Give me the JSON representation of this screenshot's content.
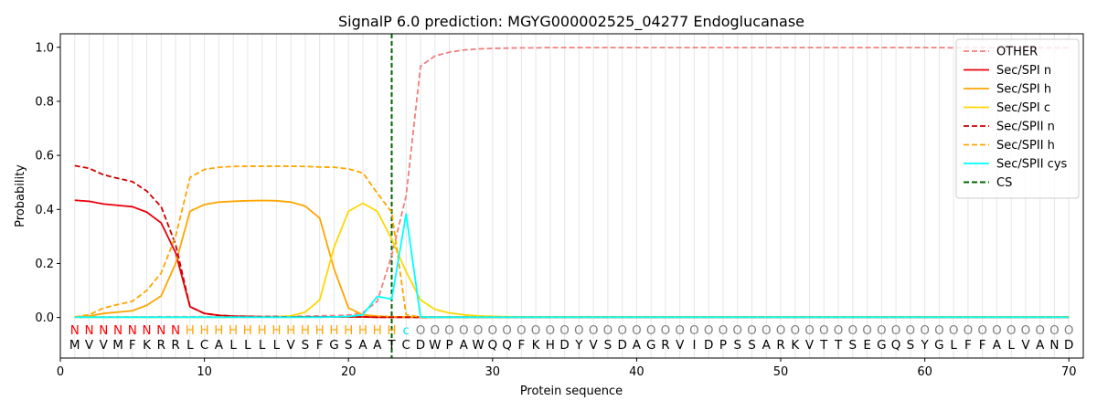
{
  "chart_data": {
    "type": "line",
    "title": "SignalP 6.0 prediction: MGYG000002525_04277 Endoglucanase",
    "xlabel": "Protein sequence",
    "ylabel": "Probability",
    "xlim": [
      0,
      71
    ],
    "ylim": [
      -0.15,
      1.05
    ],
    "xticks": [
      0,
      10,
      20,
      30,
      40,
      50,
      60,
      70
    ],
    "yticks": [
      0.0,
      0.2,
      0.4,
      0.6,
      0.8,
      1.0
    ],
    "ytick_labels": [
      "0.0",
      "0.2",
      "0.4",
      "0.6",
      "0.8",
      "1.0"
    ],
    "vertical_grid": "every position",
    "legend_position": "top-right",
    "sequence": "MVVMFKRRLCALLLLVSFGSAATCDWPAWQQFKHDYVSDAGRVIDPSSARKVTTSEGQSYGLFFALVAND",
    "labels": "NNNNNNNNHHHHHHHHHHHHHHHCOOOOOOOOOOOOOOOOOOOOOOOOOOOOOOOOOOOOOOOOOOOOOO",
    "label_colors": {
      "N": "#ff0000",
      "H": "#ffa500",
      "C": "#00e5ee",
      "O": "#808080"
    },
    "cleavage_site": 23,
    "cs_label": "CS",
    "series": [
      {
        "name": "OTHER",
        "color": "#f08080",
        "dash": true,
        "values": [
          0.002,
          0.002,
          0.002,
          0.002,
          0.002,
          0.002,
          0.003,
          0.003,
          0.003,
          0.003,
          0.003,
          0.003,
          0.003,
          0.003,
          0.004,
          0.004,
          0.005,
          0.006,
          0.007,
          0.009,
          0.018,
          0.06,
          0.23,
          0.45,
          0.93,
          0.968,
          0.982,
          0.99,
          0.994,
          0.996,
          0.997,
          0.998,
          0.998,
          0.999,
          0.999,
          0.999,
          0.999,
          0.999,
          0.999,
          0.999,
          0.999,
          0.999,
          0.999,
          0.999,
          0.999,
          0.999,
          0.999,
          0.999,
          0.999,
          0.999,
          0.999,
          0.999,
          0.999,
          0.999,
          0.999,
          0.999,
          0.999,
          0.999,
          0.999,
          0.999,
          0.999,
          0.998,
          0.998,
          0.998,
          0.998,
          0.998,
          0.998,
          0.998,
          0.998,
          0.998
        ]
      },
      {
        "name": "Sec/SPI n",
        "color": "#e8000b",
        "dash": false,
        "values": [
          0.434,
          0.43,
          0.42,
          0.415,
          0.41,
          0.39,
          0.35,
          0.24,
          0.04,
          0.015,
          0.008,
          0.005,
          0.004,
          0.003,
          0.003,
          0.002,
          0.002,
          0.002,
          0.002,
          0.002,
          0.002,
          0.001,
          0.001,
          0.001,
          0.001,
          0.001,
          0.001,
          0.001,
          0.001,
          0.001,
          0.001,
          0.001,
          0.001,
          0.001,
          0.001,
          0.001,
          0.001,
          0.001,
          0.001,
          0.001,
          0.001,
          0.001,
          0.001,
          0.001,
          0.001,
          0.001,
          0.001,
          0.001,
          0.001,
          0.001,
          0.001,
          0.001,
          0.001,
          0.001,
          0.001,
          0.001,
          0.001,
          0.001,
          0.001,
          0.001,
          0.001,
          0.001,
          0.001,
          0.001,
          0.001,
          0.001,
          0.001,
          0.001,
          0.001,
          0.001
        ]
      },
      {
        "name": "Sec/SPI h",
        "color": "#ffa500",
        "dash": false,
        "values": [
          0.002,
          0.005,
          0.015,
          0.02,
          0.025,
          0.045,
          0.08,
          0.2,
          0.393,
          0.418,
          0.427,
          0.43,
          0.432,
          0.433,
          0.432,
          0.427,
          0.412,
          0.368,
          0.18,
          0.035,
          0.01,
          0.005,
          0.003,
          0.002,
          0.001,
          0.001,
          0.001,
          0.001,
          0.001,
          0.001,
          0.001,
          0.001,
          0.001,
          0.001,
          0.001,
          0.001,
          0.001,
          0.001,
          0.001,
          0.001,
          0.001,
          0.001,
          0.001,
          0.001,
          0.001,
          0.001,
          0.001,
          0.001,
          0.001,
          0.001,
          0.001,
          0.001,
          0.001,
          0.001,
          0.001,
          0.001,
          0.001,
          0.001,
          0.001,
          0.001,
          0.001,
          0.001,
          0.001,
          0.001,
          0.001,
          0.001,
          0.001,
          0.001,
          0.001,
          0.001
        ]
      },
      {
        "name": "Sec/SPI c",
        "color": "#ffd700",
        "dash": false,
        "values": [
          0.001,
          0.001,
          0.001,
          0.001,
          0.001,
          0.001,
          0.001,
          0.001,
          0.001,
          0.001,
          0.001,
          0.001,
          0.001,
          0.002,
          0.003,
          0.006,
          0.02,
          0.065,
          0.26,
          0.393,
          0.423,
          0.393,
          0.29,
          0.17,
          0.065,
          0.03,
          0.017,
          0.01,
          0.006,
          0.004,
          0.003,
          0.002,
          0.002,
          0.002,
          0.002,
          0.002,
          0.002,
          0.002,
          0.002,
          0.002,
          0.002,
          0.002,
          0.002,
          0.002,
          0.002,
          0.002,
          0.002,
          0.002,
          0.002,
          0.002,
          0.002,
          0.002,
          0.002,
          0.002,
          0.002,
          0.002,
          0.002,
          0.002,
          0.002,
          0.002,
          0.002,
          0.002,
          0.002,
          0.002,
          0.002,
          0.002,
          0.002,
          0.002,
          0.002,
          0.002
        ]
      },
      {
        "name": "Sec/SPII n",
        "color": "#cc0000",
        "dash": true,
        "values": [
          0.562,
          0.552,
          0.528,
          0.515,
          0.503,
          0.468,
          0.41,
          0.27,
          0.04,
          0.015,
          0.008,
          0.005,
          0.004,
          0.003,
          0.003,
          0.002,
          0.002,
          0.002,
          0.002,
          0.002,
          0.002,
          0.001,
          0.001,
          0.001,
          0.001,
          0.001,
          0.001,
          0.001,
          0.001,
          0.001,
          0.001,
          0.001,
          0.001,
          0.001,
          0.001,
          0.001,
          0.001,
          0.001,
          0.001,
          0.001,
          0.001,
          0.001,
          0.001,
          0.001,
          0.001,
          0.001,
          0.001,
          0.001,
          0.001,
          0.001,
          0.001,
          0.001,
          0.001,
          0.001,
          0.001,
          0.001,
          0.001,
          0.001,
          0.001,
          0.001,
          0.001,
          0.001,
          0.001,
          0.001,
          0.001,
          0.001,
          0.001,
          0.001,
          0.001,
          0.001
        ]
      },
      {
        "name": "Sec/SPII h",
        "color": "#ffa500",
        "dash": true,
        "values": [
          0.002,
          0.01,
          0.035,
          0.048,
          0.06,
          0.1,
          0.165,
          0.3,
          0.518,
          0.548,
          0.556,
          0.559,
          0.56,
          0.56,
          0.56,
          0.56,
          0.559,
          0.557,
          0.556,
          0.55,
          0.535,
          0.46,
          0.39,
          0.01,
          0.002,
          0.001,
          0.001,
          0.001,
          0.001,
          0.001,
          0.001,
          0.001,
          0.001,
          0.001,
          0.001,
          0.001,
          0.001,
          0.001,
          0.001,
          0.001,
          0.001,
          0.001,
          0.001,
          0.001,
          0.001,
          0.001,
          0.001,
          0.001,
          0.001,
          0.001,
          0.001,
          0.001,
          0.001,
          0.001,
          0.001,
          0.001,
          0.001,
          0.001,
          0.001,
          0.001,
          0.001,
          0.001,
          0.001,
          0.001,
          0.001,
          0.001,
          0.001,
          0.001,
          0.001,
          0.001
        ]
      },
      {
        "name": "Sec/SPII cys",
        "color": "#00ffff",
        "dash": false,
        "values": [
          0.001,
          0.001,
          0.001,
          0.001,
          0.001,
          0.001,
          0.001,
          0.001,
          0.001,
          0.001,
          0.001,
          0.001,
          0.001,
          0.001,
          0.001,
          0.001,
          0.001,
          0.001,
          0.002,
          0.004,
          0.01,
          0.078,
          0.068,
          0.383,
          0.002,
          0.001,
          0.001,
          0.001,
          0.001,
          0.001,
          0.001,
          0.001,
          0.001,
          0.001,
          0.001,
          0.001,
          0.001,
          0.001,
          0.001,
          0.001,
          0.001,
          0.001,
          0.001,
          0.001,
          0.001,
          0.001,
          0.001,
          0.001,
          0.001,
          0.001,
          0.001,
          0.001,
          0.001,
          0.001,
          0.001,
          0.001,
          0.001,
          0.001,
          0.001,
          0.001,
          0.001,
          0.001,
          0.001,
          0.001,
          0.001,
          0.001,
          0.001,
          0.001,
          0.001,
          0.001
        ]
      }
    ]
  }
}
